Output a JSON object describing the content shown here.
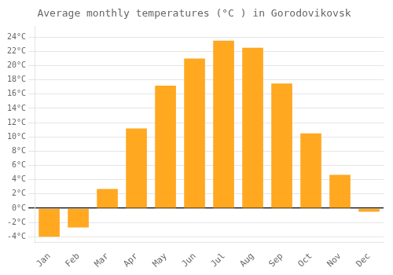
{
  "chart_data": {
    "type": "bar",
    "title": "Average monthly temperatures (°C ) in Gorodovikovsk",
    "categories": [
      "Jan",
      "Feb",
      "Mar",
      "Apr",
      "May",
      "Jun",
      "Jul",
      "Aug",
      "Sep",
      "Oct",
      "Nov",
      "Dec"
    ],
    "values": [
      -4.0,
      -2.7,
      2.7,
      11.2,
      17.2,
      21.0,
      23.5,
      22.5,
      17.5,
      10.5,
      4.7,
      -0.5
    ],
    "color": "#FFA820",
    "ylim": [
      -4.8,
      25.5
    ],
    "yticks": [
      {
        "value": -4,
        "label": "-4°C"
      },
      {
        "value": -2,
        "label": "-2°C"
      },
      {
        "value": 0,
        "label": "0°C"
      },
      {
        "value": 2,
        "label": "2°C"
      },
      {
        "value": 4,
        "label": "4°C"
      },
      {
        "value": 6,
        "label": "6°C"
      },
      {
        "value": 8,
        "label": "8°C"
      },
      {
        "value": 10,
        "label": "10°C"
      },
      {
        "value": 12,
        "label": "12°C"
      },
      {
        "value": 14,
        "label": "14°C"
      },
      {
        "value": 16,
        "label": "16°C"
      },
      {
        "value": 18,
        "label": "18°C"
      },
      {
        "value": 20,
        "label": "20°C"
      },
      {
        "value": 22,
        "label": "22°C"
      },
      {
        "value": 24,
        "label": "24°C"
      }
    ],
    "grid": true
  }
}
